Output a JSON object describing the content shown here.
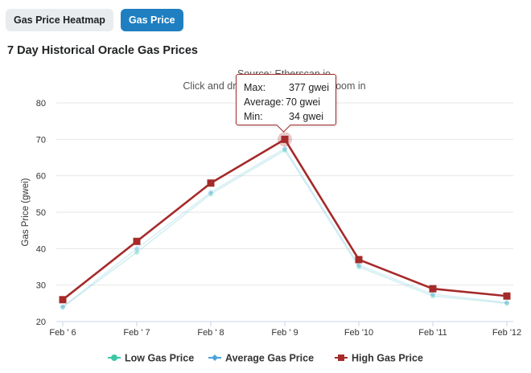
{
  "tabs": [
    {
      "label": "Gas Price Heatmap",
      "active": false
    },
    {
      "label": "Gas Price",
      "active": true
    }
  ],
  "page_title": "7 Day Historical Oracle Gas Prices",
  "tooltip": {
    "rows": [
      {
        "key": "Max:",
        "value": "377 gwei"
      },
      {
        "key": "Average:",
        "value": "70 gwei"
      },
      {
        "key": "Min:",
        "value": "34 gwei"
      }
    ]
  },
  "chart_data": {
    "type": "line",
    "subtitle_line1": "Source: Etherscan.io",
    "subtitle_line2": "Click and drag in the plot area to zoom in",
    "ylabel": "Gas Price (gwei)",
    "xlabel": "",
    "ylim": [
      20,
      80
    ],
    "yticks": [
      20,
      30,
      40,
      50,
      60,
      70,
      80
    ],
    "grid": true,
    "legend_position": "bottom",
    "categories": [
      "Feb ' 6",
      "Feb ' 7",
      "Feb ' 8",
      "Feb ' 9",
      "Feb '10",
      "Feb '11",
      "Feb '12"
    ],
    "series": [
      {
        "name": "Low Gas Price",
        "color": "#3cc8a8",
        "values": [
          24,
          39,
          55,
          67,
          35,
          27,
          25
        ],
        "marker": "circle"
      },
      {
        "name": "Average Gas Price",
        "color": "#4aa3df",
        "values": [
          24,
          40,
          55.5,
          67.5,
          35.5,
          27.5,
          25.2
        ],
        "marker": "diamond"
      },
      {
        "name": "High Gas Price",
        "color": "#a52a2a",
        "values": [
          26,
          42,
          58,
          70,
          37,
          29,
          27
        ],
        "marker": "square"
      }
    ]
  }
}
